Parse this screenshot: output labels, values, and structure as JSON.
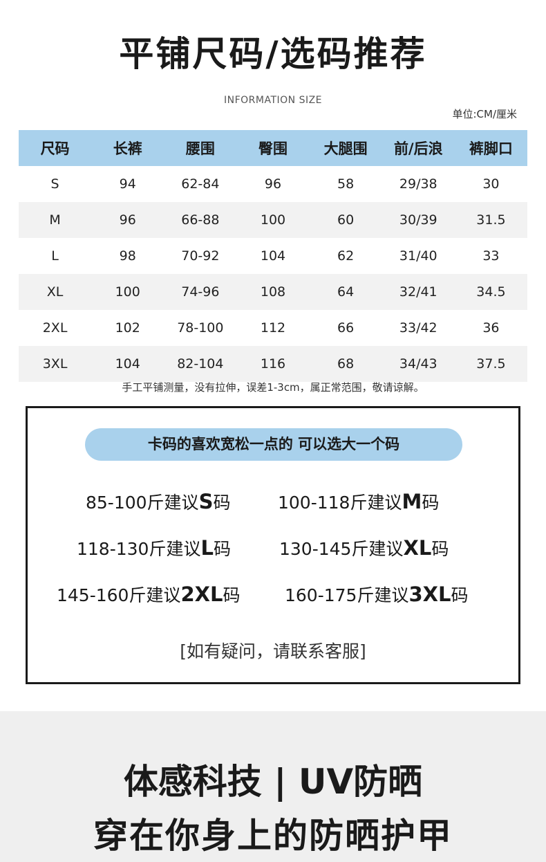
{
  "title": "平铺尺码/选码推荐",
  "subtitle": "INFORMATION SIZE",
  "unit": "单位:CM/厘米",
  "colors": {
    "header_bg": "#a9d1ec",
    "stripe": "#f2f2f2"
  },
  "table": {
    "headers": [
      "尺码",
      "长裤",
      "腰围",
      "臀围",
      "大腿围",
      "前/后浪",
      "裤脚口"
    ],
    "rows": [
      [
        "S",
        "94",
        "62-84",
        "96",
        "58",
        "29/38",
        "30"
      ],
      [
        "M",
        "96",
        "66-88",
        "100",
        "60",
        "30/39",
        "31.5"
      ],
      [
        "L",
        "98",
        "70-92",
        "104",
        "62",
        "31/40",
        "33"
      ],
      [
        "XL",
        "100",
        "74-96",
        "108",
        "64",
        "32/41",
        "34.5"
      ],
      [
        "2XL",
        "102",
        "78-100",
        "112",
        "66",
        "33/42",
        "36"
      ],
      [
        "3XL",
        "104",
        "82-104",
        "116",
        "68",
        "34/43",
        "37.5"
      ]
    ]
  },
  "note": "手工平铺测量，没有拉伸，误差1-3cm，属正常范围，敬请谅解。",
  "recommend": {
    "banner": "卡码的喜欢宽松一点的  可以选大一个码",
    "items": [
      {
        "range": "85-100斤建议",
        "size": "S",
        "suffix": "码"
      },
      {
        "range": "100-118斤建议",
        "size": "M",
        "suffix": "码"
      },
      {
        "range": "118-130斤建议",
        "size": "L",
        "suffix": "码"
      },
      {
        "range": "130-145斤建议",
        "size": "XL",
        "suffix": "码"
      },
      {
        "range": "145-160斤建议",
        "size": "2XL",
        "suffix": "码"
      },
      {
        "range": "160-175斤建议",
        "size": "3XL",
        "suffix": "码"
      }
    ],
    "contact": "[如有疑问，请联系客服]"
  },
  "footer": {
    "line1": "体感科技 | UV防晒",
    "line2": "穿在你身上的防晒护甲"
  }
}
